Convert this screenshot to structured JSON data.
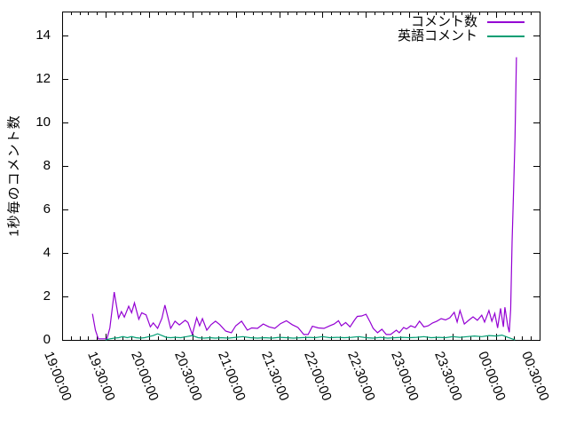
{
  "chart_data": {
    "type": "line",
    "title": "",
    "xlabel": "",
    "ylabel": "1秒毎のコメント数",
    "background_color": "#ffffff",
    "axis_color": "#000000",
    "grid": false,
    "legend_position": "top-right-inside",
    "x_axis": {
      "tick_labels": [
        "19:00:00",
        "19:30:00",
        "20:00:00",
        "20:30:00",
        "21:00:00",
        "21:30:00",
        "22:00:00",
        "22:30:00",
        "23:00:00",
        "23:30:00",
        "00:00:00",
        "00:30:00"
      ],
      "major_step_minutes": 30,
      "minor_step_minutes": 6,
      "range_minutes_from_1900": [
        0,
        330
      ]
    },
    "y_axis": {
      "tick_labels": [
        "0",
        "2",
        "4",
        "6",
        "8",
        "10",
        "12",
        "14"
      ],
      "tick_values": [
        0,
        2,
        4,
        6,
        8,
        10,
        12,
        14
      ],
      "range": [
        0,
        15.1
      ]
    },
    "series": [
      {
        "name": "コメント数",
        "color": "#9400d3",
        "points": [
          [
            "19:21",
            1.2
          ],
          [
            "19:23",
            0.45
          ],
          [
            "19:25",
            0.05
          ],
          [
            "19:28",
            0.05
          ],
          [
            "19:31",
            0.05
          ],
          [
            "19:33",
            0.55
          ],
          [
            "19:36",
            2.2
          ],
          [
            "19:39",
            1.0
          ],
          [
            "19:41",
            1.3
          ],
          [
            "19:43",
            1.05
          ],
          [
            "19:46",
            1.55
          ],
          [
            "19:48",
            1.25
          ],
          [
            "19:50",
            1.7
          ],
          [
            "19:53",
            0.95
          ],
          [
            "19:55",
            1.25
          ],
          [
            "19:58",
            1.15
          ],
          [
            "20:01",
            0.6
          ],
          [
            "20:03",
            0.78
          ],
          [
            "20:06",
            0.53
          ],
          [
            "20:09",
            1.0
          ],
          [
            "20:11",
            1.6
          ],
          [
            "20:15",
            0.53
          ],
          [
            "20:18",
            0.86
          ],
          [
            "20:21",
            0.69
          ],
          [
            "20:25",
            0.9
          ],
          [
            "20:27",
            0.8
          ],
          [
            "20:30",
            0.25
          ],
          [
            "20:33",
            1.02
          ],
          [
            "20:35",
            0.65
          ],
          [
            "20:37",
            0.98
          ],
          [
            "20:40",
            0.45
          ],
          [
            "20:43",
            0.7
          ],
          [
            "20:46",
            0.86
          ],
          [
            "20:49",
            0.7
          ],
          [
            "20:53",
            0.41
          ],
          [
            "20:57",
            0.33
          ],
          [
            "21:00",
            0.65
          ],
          [
            "21:04",
            0.86
          ],
          [
            "21:08",
            0.45
          ],
          [
            "21:11",
            0.55
          ],
          [
            "21:15",
            0.53
          ],
          [
            "21:19",
            0.73
          ],
          [
            "21:23",
            0.6
          ],
          [
            "21:27",
            0.53
          ],
          [
            "21:31",
            0.75
          ],
          [
            "21:35",
            0.88
          ],
          [
            "21:39",
            0.7
          ],
          [
            "21:43",
            0.57
          ],
          [
            "21:47",
            0.25
          ],
          [
            "21:50",
            0.25
          ],
          [
            "21:53",
            0.63
          ],
          [
            "21:57",
            0.55
          ],
          [
            "22:01",
            0.53
          ],
          [
            "22:05",
            0.65
          ],
          [
            "22:08",
            0.73
          ],
          [
            "22:11",
            0.88
          ],
          [
            "22:13",
            0.65
          ],
          [
            "22:16",
            0.8
          ],
          [
            "22:19",
            0.6
          ],
          [
            "22:22",
            0.9
          ],
          [
            "22:24",
            1.08
          ],
          [
            "22:27",
            1.1
          ],
          [
            "22:30",
            1.18
          ],
          [
            "22:33",
            0.8
          ],
          [
            "22:35",
            0.53
          ],
          [
            "22:38",
            0.33
          ],
          [
            "22:41",
            0.49
          ],
          [
            "22:44",
            0.25
          ],
          [
            "22:47",
            0.25
          ],
          [
            "22:51",
            0.45
          ],
          [
            "22:53",
            0.33
          ],
          [
            "22:56",
            0.57
          ],
          [
            "22:58",
            0.5
          ],
          [
            "23:01",
            0.65
          ],
          [
            "23:04",
            0.57
          ],
          [
            "23:07",
            0.86
          ],
          [
            "23:10",
            0.6
          ],
          [
            "23:13",
            0.65
          ],
          [
            "23:16",
            0.78
          ],
          [
            "23:19",
            0.86
          ],
          [
            "23:22",
            0.98
          ],
          [
            "23:25",
            0.92
          ],
          [
            "23:28",
            1.02
          ],
          [
            "23:31",
            1.27
          ],
          [
            "23:33",
            0.82
          ],
          [
            "23:35",
            1.35
          ],
          [
            "23:38",
            0.73
          ],
          [
            "23:41",
            0.9
          ],
          [
            "23:44",
            1.06
          ],
          [
            "23:47",
            0.9
          ],
          [
            "23:50",
            1.14
          ],
          [
            "23:52",
            0.82
          ],
          [
            "23:55",
            1.35
          ],
          [
            "23:57",
            0.86
          ],
          [
            "23:59",
            1.22
          ],
          [
            "00:01",
            0.55
          ],
          [
            "00:03",
            1.45
          ],
          [
            "00:05",
            0.6
          ],
          [
            "00:06",
            1.5
          ],
          [
            "00:08",
            0.65
          ],
          [
            "00:09",
            0.35
          ],
          [
            "00:10",
            1.4
          ],
          [
            "00:11",
            4.5
          ],
          [
            "00:12",
            6.9
          ],
          [
            "00:13",
            9.3
          ],
          [
            "00:14",
            13.0
          ]
        ]
      },
      {
        "name": "英語コメント",
        "color": "#009e73",
        "points": [
          [
            "19:30",
            0.0
          ],
          [
            "19:33",
            0.05
          ],
          [
            "19:36",
            0.08
          ],
          [
            "19:39",
            0.1
          ],
          [
            "19:42",
            0.15
          ],
          [
            "19:45",
            0.1
          ],
          [
            "19:48",
            0.15
          ],
          [
            "19:51",
            0.1
          ],
          [
            "19:54",
            0.08
          ],
          [
            "19:57",
            0.1
          ],
          [
            "20:00",
            0.15
          ],
          [
            "20:03",
            0.2
          ],
          [
            "20:06",
            0.28
          ],
          [
            "20:09",
            0.2
          ],
          [
            "20:12",
            0.12
          ],
          [
            "20:15",
            0.1
          ],
          [
            "20:18",
            0.12
          ],
          [
            "20:22",
            0.1
          ],
          [
            "20:26",
            0.15
          ],
          [
            "20:30",
            0.2
          ],
          [
            "20:34",
            0.1
          ],
          [
            "20:38",
            0.08
          ],
          [
            "20:42",
            0.1
          ],
          [
            "20:46",
            0.08
          ],
          [
            "20:50",
            0.1
          ],
          [
            "20:55",
            0.08
          ],
          [
            "21:00",
            0.12
          ],
          [
            "21:05",
            0.15
          ],
          [
            "21:10",
            0.1
          ],
          [
            "21:15",
            0.08
          ],
          [
            "21:20",
            0.1
          ],
          [
            "21:25",
            0.08
          ],
          [
            "21:30",
            0.12
          ],
          [
            "21:35",
            0.1
          ],
          [
            "21:40",
            0.08
          ],
          [
            "21:45",
            0.1
          ],
          [
            "21:50",
            0.12
          ],
          [
            "21:55",
            0.1
          ],
          [
            "22:00",
            0.15
          ],
          [
            "22:05",
            0.1
          ],
          [
            "22:10",
            0.12
          ],
          [
            "22:15",
            0.1
          ],
          [
            "22:20",
            0.12
          ],
          [
            "22:25",
            0.15
          ],
          [
            "22:30",
            0.1
          ],
          [
            "22:35",
            0.08
          ],
          [
            "22:40",
            0.12
          ],
          [
            "22:45",
            0.08
          ],
          [
            "22:50",
            0.1
          ],
          [
            "22:55",
            0.12
          ],
          [
            "23:00",
            0.1
          ],
          [
            "23:05",
            0.12
          ],
          [
            "23:10",
            0.15
          ],
          [
            "23:15",
            0.1
          ],
          [
            "23:20",
            0.12
          ],
          [
            "23:25",
            0.1
          ],
          [
            "23:30",
            0.15
          ],
          [
            "23:35",
            0.12
          ],
          [
            "23:40",
            0.15
          ],
          [
            "23:45",
            0.18
          ],
          [
            "23:50",
            0.15
          ],
          [
            "23:55",
            0.2
          ],
          [
            "00:00",
            0.18
          ],
          [
            "00:04",
            0.22
          ],
          [
            "00:08",
            0.12
          ],
          [
            "00:11",
            0.05
          ],
          [
            "00:13",
            0.0
          ]
        ]
      }
    ]
  }
}
